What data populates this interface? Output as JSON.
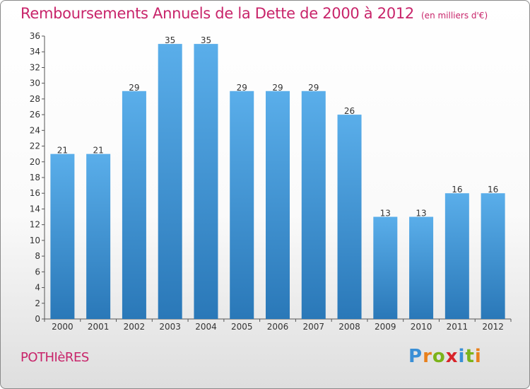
{
  "header": {
    "title": "Remboursements Annuels de la Dette de 2000 à 2012",
    "unit": "(en milliers d'€)"
  },
  "footer": {
    "commune": "POTHIèRES",
    "logo_text": "Proxiti"
  },
  "colors": {
    "title": "#c8246a",
    "bar_light": "#5aaeea",
    "bar_dark": "#2a78b8",
    "logo_letters": [
      "#3a8fd6",
      "#e8801c",
      "#7bb31a",
      "#d8242a",
      "#3a8fd6",
      "#7bb31a",
      "#e8801c"
    ]
  },
  "chart_data": {
    "type": "bar",
    "title": "Remboursements Annuels de la Dette de 2000 à 2012",
    "xlabel": "",
    "ylabel": "",
    "categories": [
      "2000",
      "2001",
      "2002",
      "2003",
      "2004",
      "2005",
      "2006",
      "2007",
      "2008",
      "2009",
      "2010",
      "2011",
      "2012"
    ],
    "values": [
      21,
      21,
      29,
      35,
      35,
      29,
      29,
      29,
      26,
      13,
      13,
      16,
      16
    ],
    "ylim": [
      0,
      36
    ],
    "yticks": [
      0,
      2,
      4,
      6,
      8,
      10,
      12,
      14,
      16,
      18,
      20,
      22,
      24,
      26,
      28,
      30,
      32,
      34,
      36
    ],
    "grid": false,
    "legend": "none"
  }
}
